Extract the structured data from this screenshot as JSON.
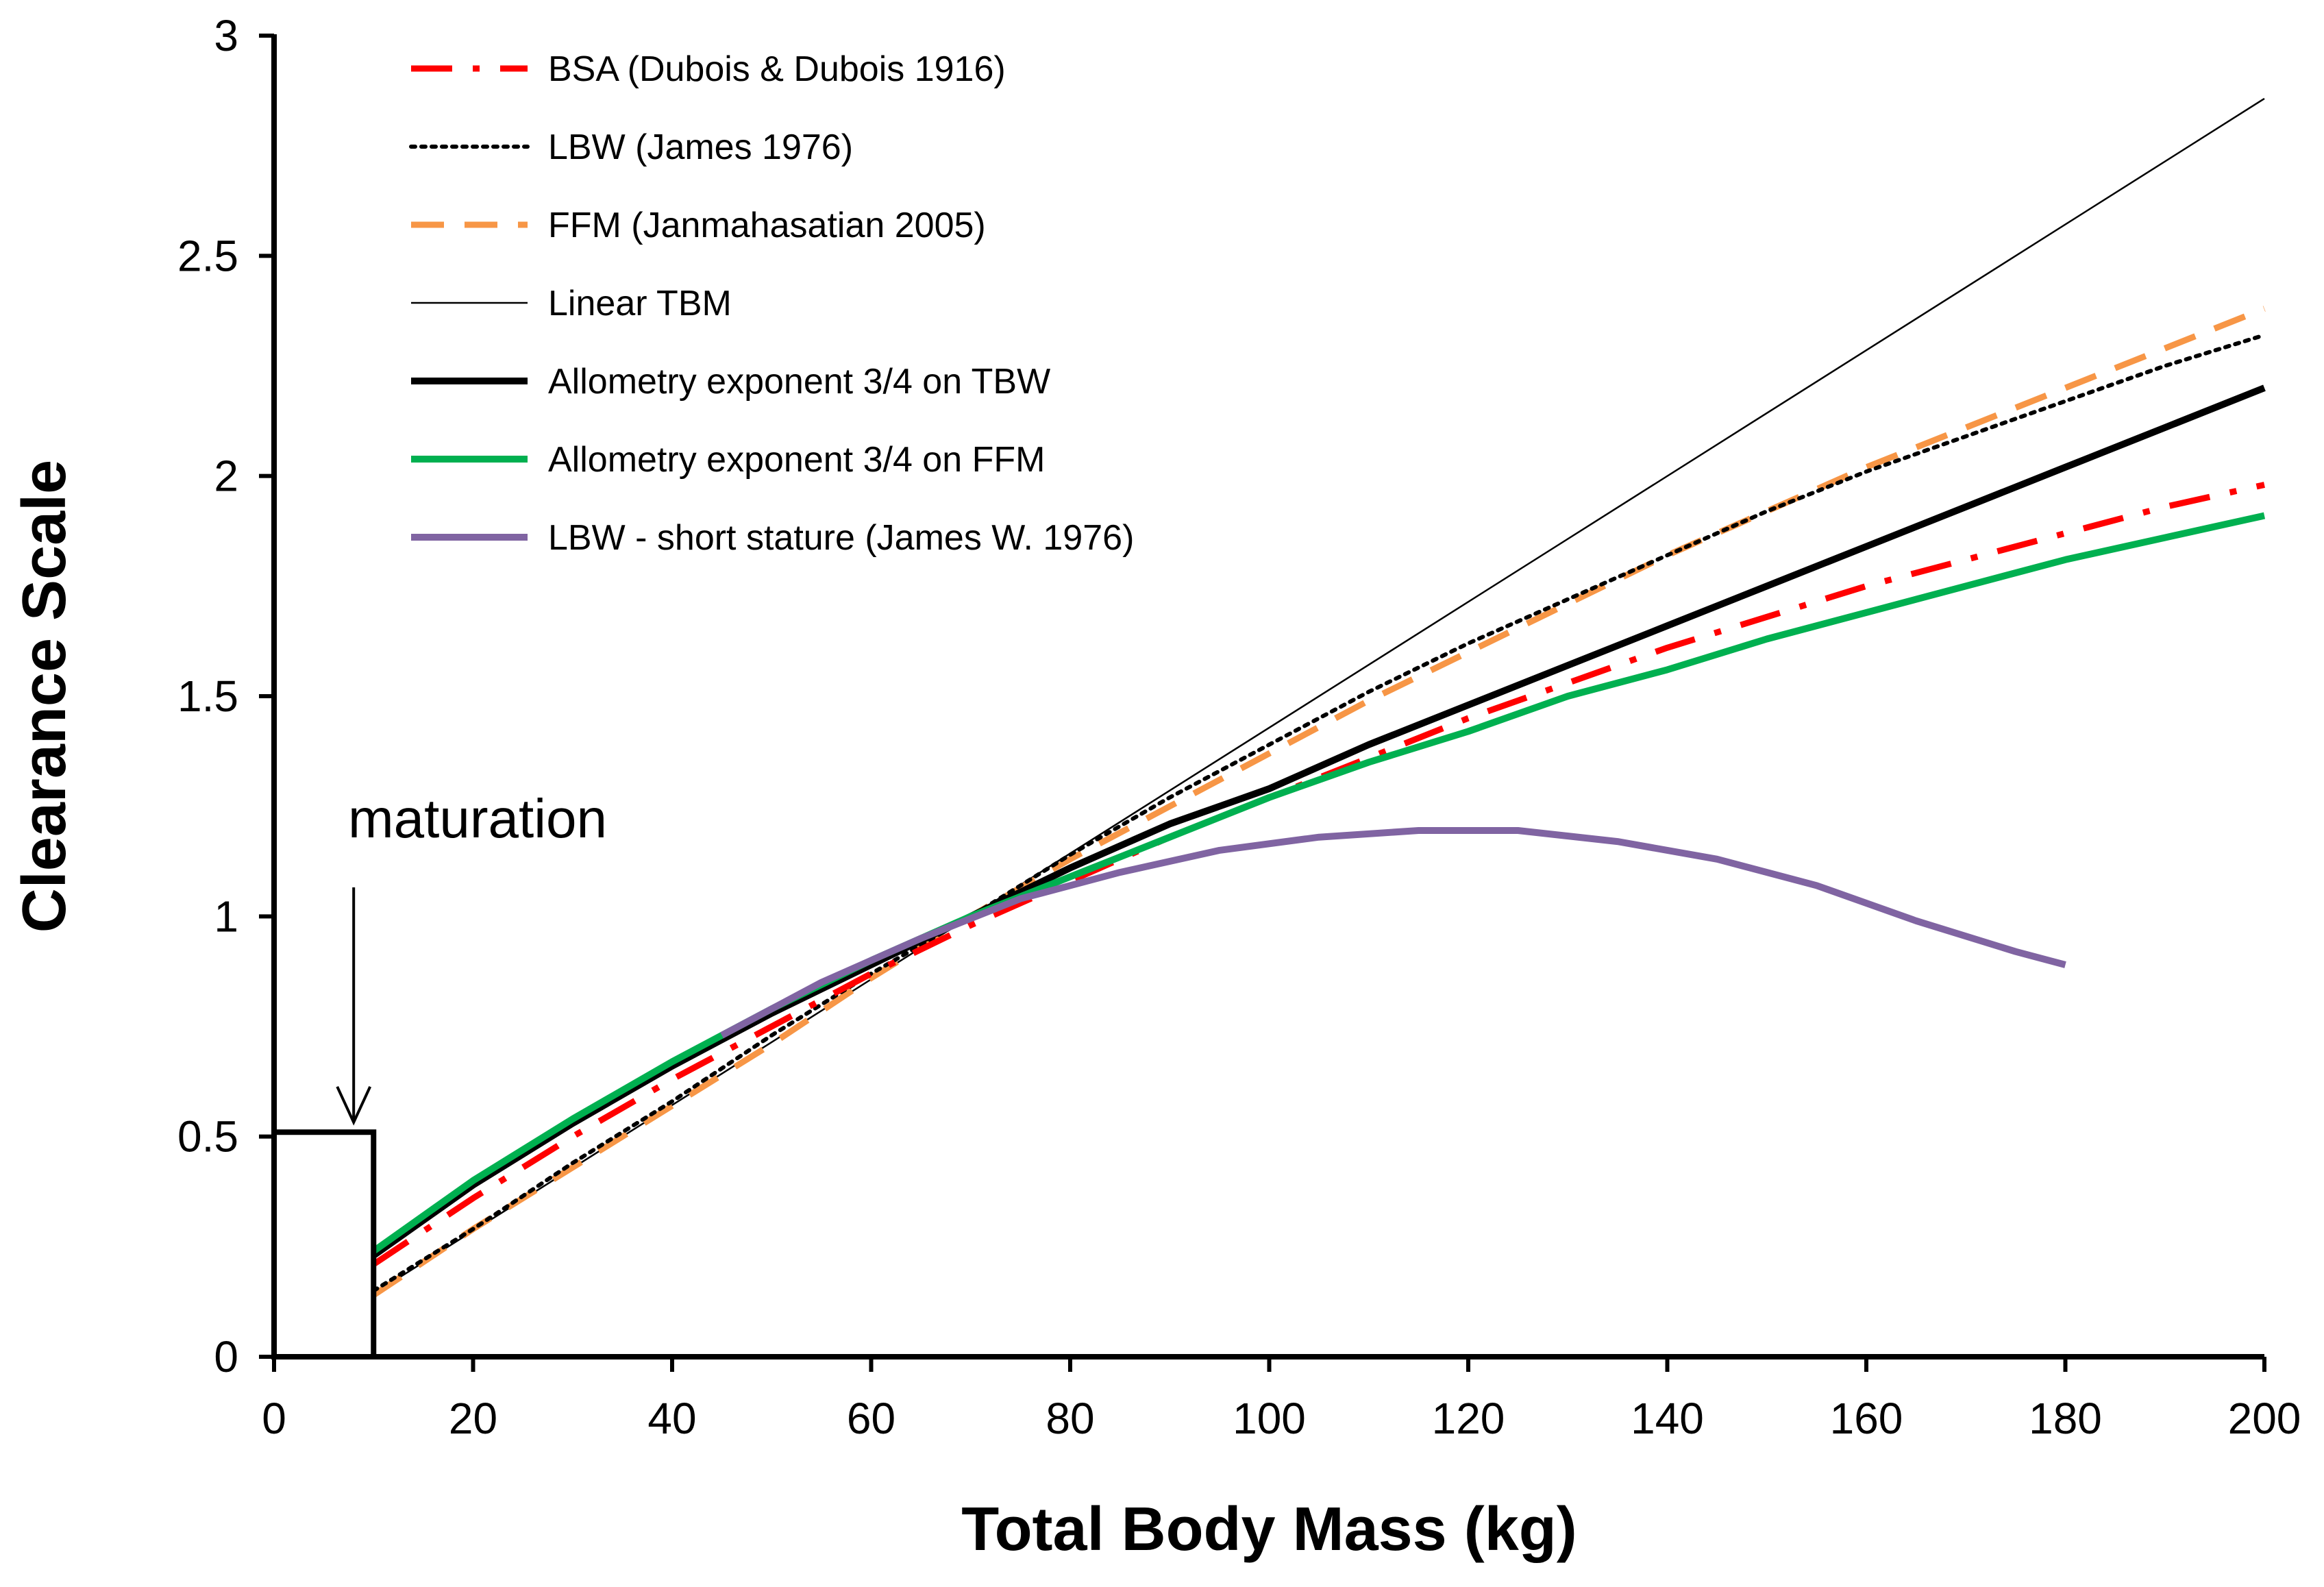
{
  "chart_data": {
    "type": "line",
    "xlabel": "Total Body Mass  (kg)",
    "ylabel": "Clearance Scale",
    "xlim": [
      0,
      200
    ],
    "ylim": [
      0,
      3
    ],
    "x_ticks": [
      "0",
      "20",
      "40",
      "60",
      "80",
      "100",
      "120",
      "140",
      "160",
      "180",
      "200"
    ],
    "y_ticks": [
      "0",
      "0.5",
      "1",
      "1.5",
      "2",
      "2.5",
      "3"
    ],
    "x_tick_values": [
      0,
      20,
      40,
      60,
      80,
      100,
      120,
      140,
      160,
      180,
      200
    ],
    "y_tick_values": [
      0,
      0.5,
      1,
      1.5,
      2,
      2.5,
      3
    ],
    "grid": false,
    "legend_position": "top-left",
    "annotation": {
      "text": "maturation",
      "arrow_points_to": {
        "x": 8,
        "y": 0.52
      }
    },
    "maturation_box": {
      "x_range": [
        0,
        10
      ],
      "y_range": [
        0,
        0.51
      ]
    },
    "series": [
      {
        "name": "BSA (Dubois & Dubois 1916)",
        "style": "dash-dot",
        "color": "#ff0000",
        "x": [
          10,
          20,
          30,
          40,
          50,
          60,
          70,
          80,
          90,
          100,
          110,
          120,
          130,
          140,
          150,
          160,
          170,
          180,
          190,
          200
        ],
        "y": [
          0.21,
          0.36,
          0.5,
          0.63,
          0.75,
          0.87,
          0.98,
          1.08,
          1.18,
          1.27,
          1.36,
          1.45,
          1.53,
          1.61,
          1.68,
          1.75,
          1.81,
          1.87,
          1.93,
          1.98
        ]
      },
      {
        "name": "LBW (James 1976)",
        "style": "dotted",
        "color": "#000000",
        "x": [
          10,
          20,
          30,
          40,
          50,
          60,
          70,
          80,
          90,
          100,
          110,
          120,
          130,
          140,
          150,
          160,
          170,
          180,
          190,
          200
        ],
        "y": [
          0.15,
          0.29,
          0.44,
          0.58,
          0.73,
          0.87,
          1.0,
          1.14,
          1.27,
          1.39,
          1.51,
          1.62,
          1.72,
          1.82,
          1.92,
          2.01,
          2.09,
          2.17,
          2.25,
          2.32
        ]
      },
      {
        "name": "FFM (Janmahasatian 2005)",
        "style": "dashed",
        "color": "#f79646",
        "x": [
          10,
          20,
          30,
          40,
          50,
          60,
          70,
          80,
          90,
          100,
          110,
          120,
          130,
          140,
          150,
          160,
          170,
          180,
          190,
          200
        ],
        "y": [
          0.14,
          0.29,
          0.43,
          0.57,
          0.71,
          0.86,
          1.0,
          1.13,
          1.25,
          1.37,
          1.49,
          1.6,
          1.71,
          1.82,
          1.92,
          2.02,
          2.11,
          2.2,
          2.29,
          2.38
        ]
      },
      {
        "name": "Linear TBM",
        "style": "thin",
        "color": "#000000",
        "x": [
          10,
          200
        ],
        "y": [
          0.143,
          2.857
        ]
      },
      {
        "name": "Allometry exponent 3/4 on TBW",
        "style": "solid-thick",
        "color": "#000000",
        "x": [
          10,
          20,
          30,
          40,
          50,
          60,
          70,
          80,
          90,
          100,
          110,
          120,
          130,
          140,
          150,
          160,
          170,
          180,
          190,
          200
        ],
        "y": [
          0.23,
          0.39,
          0.53,
          0.66,
          0.78,
          0.89,
          1.0,
          1.11,
          1.21,
          1.29,
          1.39,
          1.48,
          1.57,
          1.66,
          1.75,
          1.84,
          1.93,
          2.02,
          2.11,
          2.2
        ]
      },
      {
        "name": "Allometry exponent 3/4 on FFM",
        "style": "solid-thick",
        "color": "#00b050",
        "x": [
          10,
          20,
          30,
          40,
          50,
          60,
          70,
          80,
          90,
          100,
          110,
          120,
          130,
          140,
          150,
          160,
          170,
          180,
          190,
          200
        ],
        "y": [
          0.24,
          0.4,
          0.54,
          0.67,
          0.79,
          0.9,
          1.0,
          1.09,
          1.18,
          1.27,
          1.35,
          1.42,
          1.5,
          1.56,
          1.63,
          1.69,
          1.75,
          1.81,
          1.86,
          1.91
        ]
      },
      {
        "name": "LBW - short stature (James W. 1976)",
        "style": "solid-thick",
        "color": "#8064a2",
        "x": [
          45,
          55,
          65,
          75,
          85,
          95,
          105,
          115,
          125,
          135,
          145,
          155,
          165,
          175,
          180
        ],
        "y": [
          0.73,
          0.85,
          0.95,
          1.04,
          1.1,
          1.15,
          1.18,
          1.195,
          1.195,
          1.17,
          1.13,
          1.07,
          0.99,
          0.92,
          0.89
        ]
      }
    ]
  }
}
